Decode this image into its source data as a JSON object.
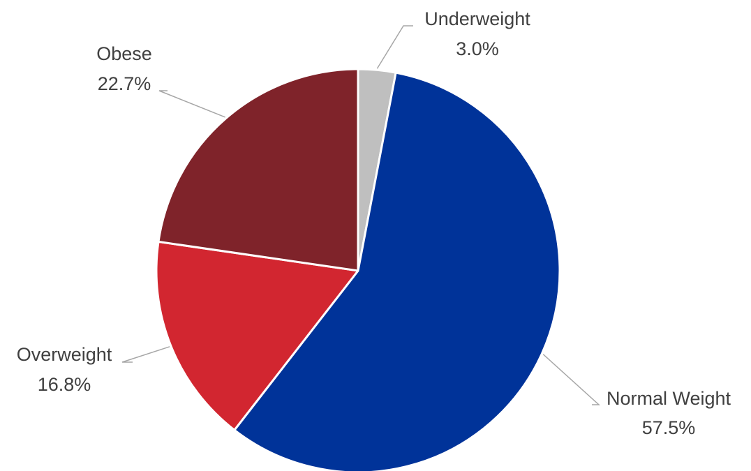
{
  "chart_data": {
    "type": "pie",
    "title": "",
    "legend": "none",
    "slices": [
      {
        "name": "Underweight",
        "value": 3.0,
        "label": "3.0%",
        "color": "#bfbfbf"
      },
      {
        "name": "Normal Weight",
        "value": 57.5,
        "label": "57.5%",
        "color": "#003399"
      },
      {
        "name": "Overweight",
        "value": 16.8,
        "label": "16.8%",
        "color": "#d22630"
      },
      {
        "name": "Obese",
        "value": 22.7,
        "label": "22.7%",
        "color": "#7f232a"
      }
    ]
  }
}
